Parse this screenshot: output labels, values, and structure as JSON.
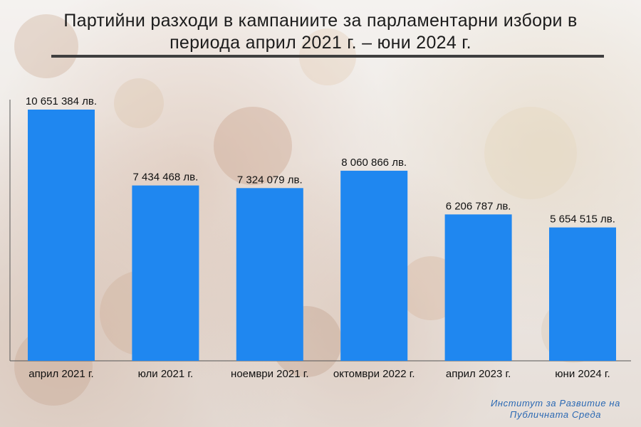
{
  "title": "Партийни разходи в кампаниите за парламентарни избори в периода април 2021 г. – юни 2024 г.",
  "watermark": "Институт за Развитие на Публичната Среда",
  "colors": {
    "bar": "#1f87f0",
    "rule": "#3f3f3f",
    "watermark": "#2a68b3"
  },
  "chart_data": {
    "type": "bar",
    "title": "Партийни разходи в кампаниите за парламентарни избори в периода април 2021 г. – юни 2024 г.",
    "categories": [
      "април 2021 г.",
      "юли 2021 г.",
      "ноември 2021 г.",
      "октомври 2022 г.",
      "април 2023 г.",
      "юни 2024 г."
    ],
    "values": [
      10651384,
      7434468,
      7324079,
      8060866,
      6206787,
      5654515
    ],
    "value_labels": [
      "10 651 384 лв.",
      "7 434 468 лв.",
      "7 324 079 лв.",
      "8 060 866 лв.",
      "6 206 787 лв.",
      "5 654 515 лв."
    ],
    "xlabel": "",
    "ylabel": "",
    "ylim": [
      0,
      10651384
    ],
    "grid": false,
    "legend": "none"
  }
}
